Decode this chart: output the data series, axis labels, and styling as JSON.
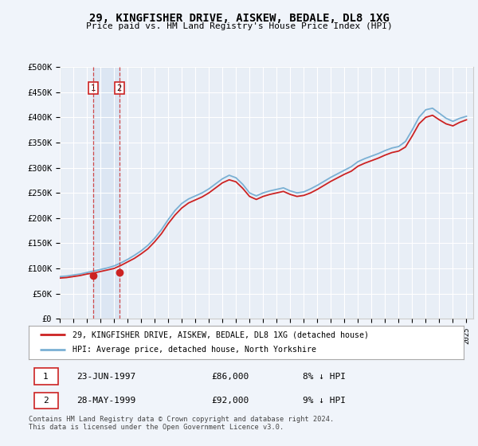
{
  "title": "29, KINGFISHER DRIVE, AISKEW, BEDALE, DL8 1XG",
  "subtitle": "Price paid vs. HM Land Registry's House Price Index (HPI)",
  "background_color": "#f0f4fa",
  "plot_bg_color": "#e8eef6",
  "legend_label_red": "29, KINGFISHER DRIVE, AISKEW, BEDALE, DL8 1XG (detached house)",
  "legend_label_blue": "HPI: Average price, detached house, North Yorkshire",
  "transaction1_date": "23-JUN-1997",
  "transaction1_price": "£86,000",
  "transaction1_hpi": "8% ↓ HPI",
  "transaction2_date": "28-MAY-1999",
  "transaction2_price": "£92,000",
  "transaction2_hpi": "9% ↓ HPI",
  "footer": "Contains HM Land Registry data © Crown copyright and database right 2024.\nThis data is licensed under the Open Government Licence v3.0.",
  "transaction1_x": 1997.47,
  "transaction1_y": 86000,
  "transaction2_x": 1999.4,
  "transaction2_y": 92000,
  "ylim": [
    0,
    500000
  ],
  "xlim": [
    1995.0,
    2025.5
  ],
  "red_color": "#cc2222",
  "blue_color": "#7ab0d4",
  "grid_color": "#ffffff",
  "spine_color": "#cccccc",
  "label_box_color": "#cc2222",
  "shaded_color": "#c8d8ee"
}
